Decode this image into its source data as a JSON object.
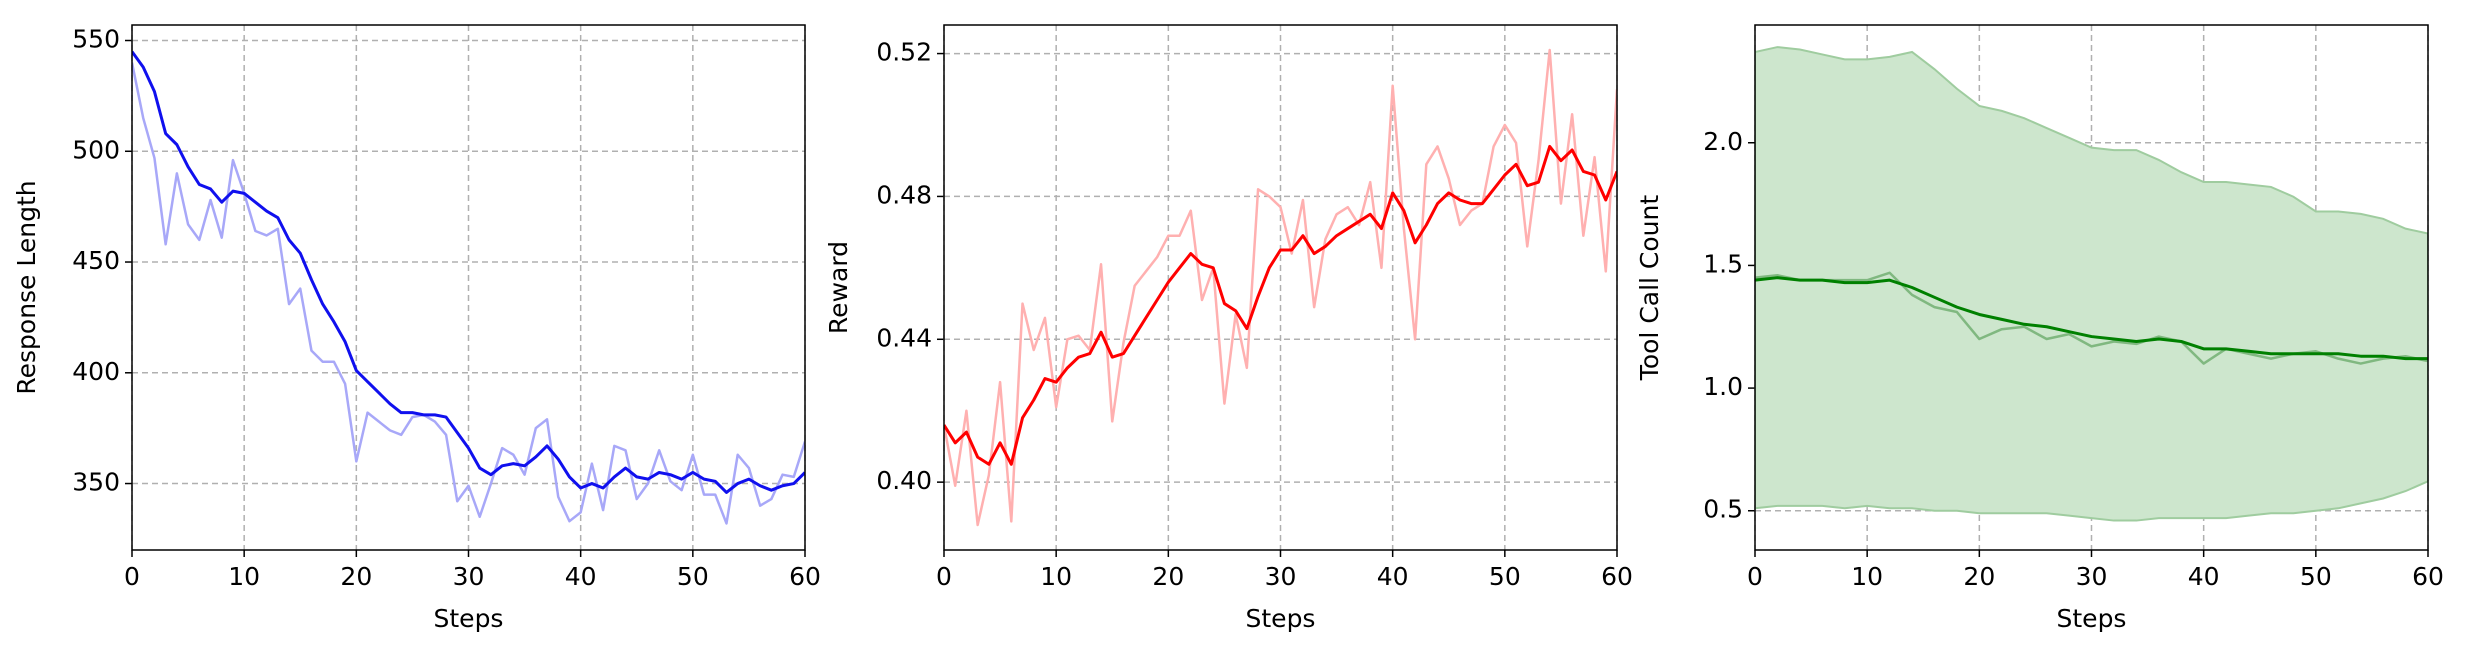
{
  "chart_data": [
    {
      "type": "line",
      "ylabel": "Response Length",
      "xlabel": "Steps",
      "xlim": [
        0,
        60
      ],
      "xticks": [
        0,
        10,
        20,
        30,
        40,
        50,
        60
      ],
      "ylim": [
        320,
        557
      ],
      "yticks": [
        350,
        400,
        450,
        500,
        550
      ],
      "grid": true,
      "x": [
        0,
        1,
        2,
        3,
        4,
        5,
        6,
        7,
        8,
        9,
        10,
        11,
        12,
        13,
        14,
        15,
        16,
        17,
        18,
        19,
        20,
        21,
        22,
        23,
        24,
        25,
        26,
        27,
        28,
        29,
        30,
        31,
        32,
        33,
        34,
        35,
        36,
        37,
        38,
        39,
        40,
        41,
        42,
        43,
        44,
        45,
        46,
        47,
        48,
        49,
        50,
        51,
        52,
        53,
        54,
        55,
        56,
        57,
        58,
        59,
        60
      ],
      "series": [
        {
          "color": "#a8a8f8",
          "values": [
            540,
            515,
            497,
            458,
            490,
            467,
            460,
            478,
            461,
            496,
            481,
            464,
            462,
            465,
            431,
            438,
            410,
            405,
            405,
            395,
            360,
            382,
            378,
            374,
            372,
            380,
            381,
            378,
            372,
            342,
            349,
            335,
            350,
            366,
            363,
            354,
            375,
            379,
            344,
            333,
            337,
            359,
            338,
            367,
            365,
            343,
            350,
            365,
            351,
            347,
            363,
            345,
            345,
            332,
            363,
            357,
            340,
            343,
            354,
            353,
            369
          ]
        },
        {
          "color": "#1010ee",
          "values": [
            545,
            538,
            527,
            508,
            503,
            493,
            485,
            483,
            477,
            482,
            481,
            477,
            473,
            470,
            460,
            454,
            442,
            431,
            423,
            414,
            401,
            396,
            391,
            386,
            382,
            382,
            381,
            381,
            380,
            373,
            366,
            357,
            354,
            358,
            359,
            358,
            362,
            367,
            361,
            353,
            348,
            350,
            348,
            353,
            357,
            353,
            352,
            355,
            354,
            352,
            355,
            352,
            351,
            346,
            350,
            352,
            349,
            347,
            349,
            350,
            355
          ]
        }
      ]
    },
    {
      "type": "line",
      "ylabel": "Reward",
      "xlabel": "Steps",
      "xlim": [
        0,
        60
      ],
      "xticks": [
        0,
        10,
        20,
        30,
        40,
        50,
        60
      ],
      "ylim": [
        0.381,
        0.528
      ],
      "yticks": [
        {
          "value": 0.4,
          "label": "0.40"
        },
        0.44,
        0.48,
        0.52
      ],
      "grid": true,
      "x": [
        0,
        1,
        2,
        3,
        4,
        5,
        6,
        7,
        8,
        9,
        10,
        11,
        12,
        13,
        14,
        15,
        16,
        17,
        18,
        19,
        20,
        21,
        22,
        23,
        24,
        25,
        26,
        27,
        28,
        29,
        30,
        31,
        32,
        33,
        34,
        35,
        36,
        37,
        38,
        39,
        40,
        41,
        42,
        43,
        44,
        45,
        46,
        47,
        48,
        49,
        50,
        51,
        52,
        53,
        54,
        55,
        56,
        57,
        58,
        59,
        60
      ],
      "series": [
        {
          "color": "#ffb0b0",
          "values": [
            0.416,
            0.399,
            0.42,
            0.388,
            0.402,
            0.428,
            0.389,
            0.45,
            0.437,
            0.446,
            0.421,
            0.44,
            0.441,
            0.437,
            0.461,
            0.417,
            0.439,
            0.455,
            0.459,
            0.463,
            0.469,
            0.469,
            0.476,
            0.451,
            0.46,
            0.422,
            0.447,
            0.432,
            0.482,
            0.48,
            0.477,
            0.464,
            0.479,
            0.449,
            0.468,
            0.475,
            0.477,
            0.472,
            0.484,
            0.46,
            0.511,
            0.471,
            0.44,
            0.489,
            0.494,
            0.485,
            0.472,
            0.476,
            0.478,
            0.494,
            0.5,
            0.495,
            0.466,
            0.49,
            0.521,
            0.478,
            0.503,
            0.469,
            0.491,
            0.459,
            0.51
          ]
        },
        {
          "color": "#ff0000",
          "values": [
            0.416,
            0.411,
            0.414,
            0.407,
            0.405,
            0.411,
            0.405,
            0.418,
            0.423,
            0.429,
            0.428,
            0.432,
            0.435,
            0.436,
            0.442,
            0.435,
            0.436,
            0.441,
            0.446,
            0.451,
            0.456,
            0.46,
            0.464,
            0.461,
            0.46,
            0.45,
            0.448,
            0.443,
            0.452,
            0.46,
            0.465,
            0.465,
            0.469,
            0.464,
            0.466,
            0.469,
            0.471,
            0.473,
            0.475,
            0.471,
            0.481,
            0.476,
            0.467,
            0.472,
            0.478,
            0.481,
            0.479,
            0.478,
            0.478,
            0.482,
            0.486,
            0.489,
            0.483,
            0.484,
            0.494,
            0.49,
            0.493,
            0.487,
            0.486,
            0.479,
            0.487
          ]
        }
      ]
    },
    {
      "type": "line",
      "ylabel": "Tool Call Count",
      "xlabel": "Steps",
      "xlim": [
        0,
        60
      ],
      "xticks": [
        0,
        10,
        20,
        30,
        40,
        50,
        60
      ],
      "ylim": [
        0.34,
        2.48
      ],
      "yticks": [
        0.5,
        {
          "value": 1,
          "label": "1.0"
        },
        1.5,
        {
          "value": 2,
          "label": "2.0"
        }
      ],
      "grid": true,
      "x": [
        0,
        2,
        4,
        6,
        8,
        10,
        12,
        14,
        16,
        18,
        20,
        22,
        24,
        26,
        28,
        30,
        32,
        34,
        36,
        38,
        40,
        42,
        44,
        46,
        48,
        50,
        52,
        54,
        56,
        58,
        60
      ],
      "bands": [
        {
          "color": "#cde6cd",
          "lower": [
            0.51,
            0.52,
            0.52,
            0.52,
            0.51,
            0.52,
            0.51,
            0.51,
            0.5,
            0.5,
            0.49,
            0.49,
            0.49,
            0.49,
            0.48,
            0.47,
            0.46,
            0.46,
            0.47,
            0.47,
            0.47,
            0.47,
            0.48,
            0.49,
            0.49,
            0.5,
            0.51,
            0.53,
            0.55,
            0.58,
            0.62
          ],
          "upper": [
            2.37,
            2.39,
            2.38,
            2.36,
            2.34,
            2.34,
            2.35,
            2.37,
            2.3,
            2.22,
            2.15,
            2.13,
            2.1,
            2.06,
            2.02,
            1.98,
            1.97,
            1.97,
            1.93,
            1.88,
            1.84,
            1.84,
            1.83,
            1.82,
            1.78,
            1.72,
            1.72,
            1.71,
            1.69,
            1.65,
            1.63
          ]
        }
      ],
      "series": [
        {
          "color": "#80b880",
          "values": [
            1.45,
            1.46,
            1.44,
            1.44,
            1.44,
            1.44,
            1.47,
            1.38,
            1.33,
            1.31,
            1.2,
            1.24,
            1.25,
            1.2,
            1.22,
            1.17,
            1.19,
            1.18,
            1.21,
            1.19,
            1.1,
            1.16,
            1.14,
            1.12,
            1.14,
            1.15,
            1.12,
            1.1,
            1.12,
            1.13,
            1.11
          ]
        },
        {
          "color": "#008000",
          "values": [
            1.44,
            1.45,
            1.44,
            1.44,
            1.43,
            1.43,
            1.44,
            1.41,
            1.37,
            1.33,
            1.3,
            1.28,
            1.26,
            1.25,
            1.23,
            1.21,
            1.2,
            1.19,
            1.2,
            1.19,
            1.16,
            1.16,
            1.15,
            1.14,
            1.14,
            1.14,
            1.14,
            1.13,
            1.13,
            1.12,
            1.12
          ]
        }
      ]
    }
  ]
}
